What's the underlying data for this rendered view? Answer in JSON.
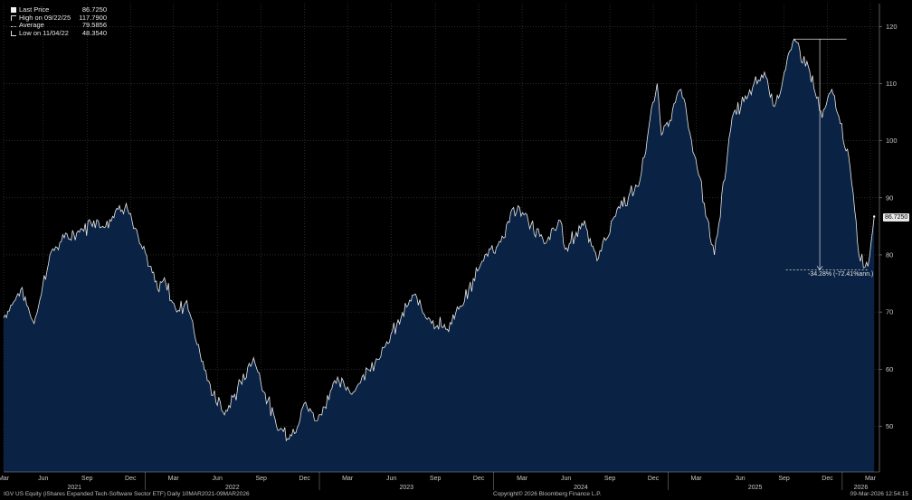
{
  "legend": {
    "last_label": "Last Price",
    "last_value": "86.7250",
    "high_label": "High on 09/22/25",
    "high_value": "117.7900",
    "avg_label": "Average",
    "avg_value": "79.5856",
    "low_label": "Low on 11/04/22",
    "low_value": "48.3540"
  },
  "price_tag": "86.7250",
  "drawdown_label": "-34.28% (-72.41%ann.)",
  "footer": {
    "left": "IGV US Equity (iShares Expanded Tech-Software Sector ETF) Daily 10MAR2021-09MAR2026",
    "center": "Copyright© 2026 Bloomberg Finance L.P.",
    "right": "09-Mar-2026 12:54:15"
  },
  "colors": {
    "background": "#000000",
    "area_fill": "#0a2344",
    "line": "#e8e8e8",
    "grid": "#444444"
  },
  "chart_data": {
    "type": "area",
    "title": "",
    "xlabel": "",
    "ylabel": "",
    "ylim": [
      42,
      124
    ],
    "y_ticks": [
      "50",
      "60",
      "70",
      "80",
      "90",
      "100",
      "110",
      "120"
    ],
    "month_labels": [
      "Mar",
      "Jun",
      "Sep",
      "Dec",
      "Mar",
      "Jun",
      "Sep",
      "Dec",
      "Mar",
      "Jun",
      "Sep",
      "Dec",
      "Mar",
      "Jun",
      "Sep",
      "Dec",
      "Mar",
      "Jun",
      "Sep",
      "Dec",
      "Mar"
    ],
    "year_labels": [
      "2021",
      "2022",
      "2023",
      "2024",
      "2025",
      "2026"
    ],
    "grid": true,
    "legend_position": "top-left",
    "series": [
      {
        "name": "Last Price",
        "x": [
          "2021-03-10",
          "2021-04-15",
          "2021-05-13",
          "2021-06-15",
          "2021-07-15",
          "2021-08-16",
          "2021-09-15",
          "2021-10-04",
          "2021-11-05",
          "2021-11-22",
          "2021-12-20",
          "2022-01-10",
          "2022-01-27",
          "2022-02-10",
          "2022-03-08",
          "2022-03-29",
          "2022-05-11",
          "2022-06-16",
          "2022-08-16",
          "2022-10-03",
          "2022-11-04",
          "2022-11-30",
          "2022-12-28",
          "2023-02-02",
          "2023-03-13",
          "2023-04-12",
          "2023-05-19",
          "2023-07-18",
          "2023-08-18",
          "2023-09-26",
          "2023-10-26",
          "2023-12-14",
          "2024-01-22",
          "2024-02-09",
          "2024-03-05",
          "2024-04-19",
          "2024-05-20",
          "2024-05-30",
          "2024-07-10",
          "2024-08-05",
          "2024-09-16",
          "2024-10-31",
          "2024-12-09",
          "2024-12-18",
          "2025-01-28",
          "2025-02-19",
          "2025-04-08",
          "2025-05-15",
          "2025-06-18",
          "2025-07-22",
          "2025-08-12",
          "2025-09-22",
          "2025-10-22",
          "2025-11-20",
          "2025-12-10",
          "2026-01-15",
          "2026-02-05",
          "2026-02-24",
          "2026-03-09"
        ],
        "values": [
          69,
          74,
          68,
          80,
          83,
          84,
          86,
          85,
          88,
          89,
          82,
          78,
          74,
          76,
          70,
          72,
          58,
          52,
          62,
          50,
          48.354,
          54,
          51,
          58,
          56,
          60,
          64,
          73,
          69,
          67,
          71,
          80,
          83,
          88,
          87,
          82,
          86,
          81,
          86,
          79,
          88,
          92,
          110,
          101,
          109,
          100,
          80,
          104,
          108,
          112,
          106,
          117.79,
          113,
          104,
          109,
          97,
          80,
          78,
          86.725
        ]
      }
    ],
    "annotations": [
      {
        "type": "drawdown",
        "from_value": 117.79,
        "to_value": 77.4,
        "label": "-34.28% (-72.41%ann.)"
      }
    ]
  }
}
